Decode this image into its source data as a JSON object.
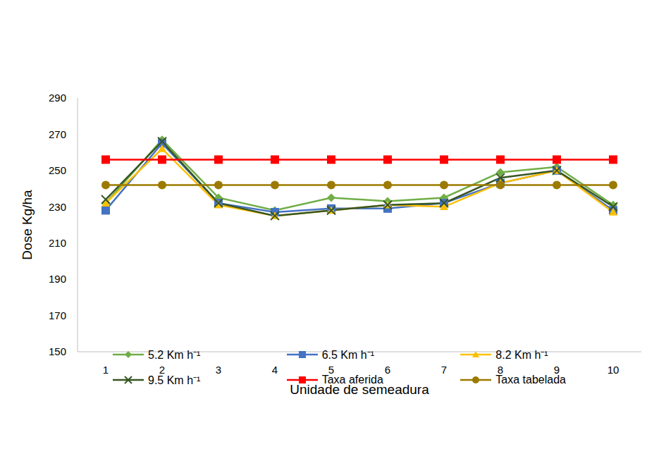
{
  "chart_data": {
    "type": "line",
    "x_label": "Unidade de semeadura",
    "y_label": "Dose Kg/ha",
    "categories": [
      "1",
      "2",
      "3",
      "4",
      "5",
      "6",
      "7",
      "8",
      "9",
      "10"
    ],
    "ylim": [
      150,
      290
    ],
    "yticks": [
      150,
      170,
      190,
      210,
      230,
      250,
      270,
      290
    ],
    "grid": false,
    "legend": "bottom",
    "series": [
      {
        "name": "5.2 Km h⁻¹",
        "color": "#70ad47",
        "marker": "diamond",
        "values": [
          232,
          267,
          235,
          228,
          235,
          233,
          235,
          249,
          252,
          231
        ]
      },
      {
        "name": "6.5 Km h⁻¹",
        "color": "#4472c4",
        "marker": "square",
        "values": [
          228,
          265,
          232,
          227,
          229,
          229,
          232,
          243,
          250,
          228
        ]
      },
      {
        "name": "8.2 Km h⁻¹",
        "color": "#ffc000",
        "marker": "triangle",
        "values": [
          232,
          262,
          231,
          225,
          228,
          231,
          230,
          243,
          250,
          227
        ]
      },
      {
        "name": "9.5 Km h⁻¹",
        "color": "#375623",
        "marker": "x",
        "values": [
          234,
          266,
          232,
          225,
          228,
          231,
          232,
          246,
          250,
          230
        ]
      },
      {
        "name": "Taxa aferida",
        "color": "#ff0000",
        "marker": "square",
        "values": [
          256,
          256,
          256,
          256,
          256,
          256,
          256,
          256,
          256,
          256
        ]
      },
      {
        "name": "Taxa tabelada",
        "color": "#9c7a00",
        "marker": "circle",
        "values": [
          242,
          242,
          242,
          242,
          242,
          242,
          242,
          242,
          242,
          242
        ]
      }
    ]
  }
}
